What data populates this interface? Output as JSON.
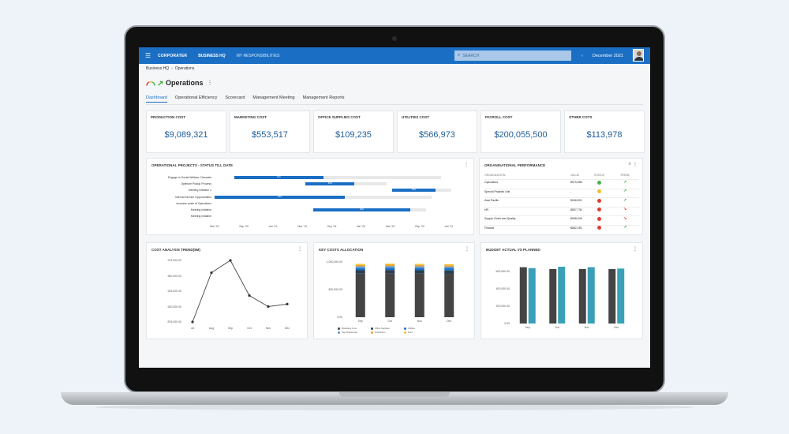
{
  "app": {
    "logo": "CORPORATER",
    "nav": [
      "BUSINESS HQ",
      "MY RESPONSIBILITIES"
    ],
    "search_placeholder": "SEARCH",
    "date": "December 2021",
    "prev": "‹",
    "next": "›"
  },
  "breadcrumb": [
    "Business HQ",
    "Operations"
  ],
  "page_title": "Operations",
  "tabs": [
    "Dashboard",
    "Operational Efficiency",
    "Scorecard",
    "Management Meeting",
    "Management Reports"
  ],
  "kpis": [
    {
      "label": "PRODUCTION COST",
      "value": "$9,089,321"
    },
    {
      "label": "MARKETING COST",
      "value": "$553,517"
    },
    {
      "label": "OFFICE SUPPLIES COST",
      "value": "$109,235"
    },
    {
      "label": "UTILITIES COST",
      "value": "$566,973"
    },
    {
      "label": "PAYROLL COST",
      "value": "$200,055,500"
    },
    {
      "label": "OTHER COTS",
      "value": "$113,978"
    }
  ],
  "gantt": {
    "title": "OPERATIONAL PROJECTS - STATUS TILL DATE",
    "axis_start": "2020-03",
    "axis_end": "2021-02",
    "ticks": [
      "Mar '20",
      "Sep '20",
      "Jan '19",
      "Mar '19",
      "Sep '19",
      "Jan '20",
      "Mar '20",
      "Sep '20",
      "Jan '21"
    ],
    "rows": [
      {
        "label": "Engage in Social Welfare Channels",
        "start": 0.08,
        "end": 0.92,
        "progress": 0.43,
        "pct": "71%"
      },
      {
        "label": "Optimize Pickup Process",
        "start": 0.37,
        "end": 0.7,
        "progress": 0.6,
        "pct": "61%"
      },
      {
        "label": "Meeting initiative 1",
        "start": 0.72,
        "end": 0.96,
        "progress": 0.74,
        "pct": "64%"
      },
      {
        "label": "Internal Service Opportunities",
        "start": 0.0,
        "end": 0.88,
        "progress": 0.6,
        "pct": "49%"
      },
      {
        "label": "Increase scale of Operations",
        "start": 0,
        "end": 0,
        "progress": 0,
        "pct": ""
      },
      {
        "label": "Meeting initiative",
        "start": 0.4,
        "end": 0.86,
        "progress": 0.86,
        "pct": "46%"
      },
      {
        "label": "Meeting initiative",
        "start": 0,
        "end": 0,
        "progress": 0,
        "pct": ""
      }
    ]
  },
  "org": {
    "title": "ORGANISATIONAL PERFORMANCE",
    "headers": [
      "ORGANIZATION",
      "VALUE",
      "STATUS",
      "TREND"
    ],
    "rows": [
      {
        "name": "Operations",
        "value": "$979,658",
        "status": "#4caf50",
        "trend": "up"
      },
      {
        "name": "Special Projects Unit",
        "value": "-",
        "status": "#f2c230",
        "trend": "up"
      },
      {
        "name": "Asia Pacific",
        "value": "$946,531",
        "status": "#e53935",
        "trend": "up"
      },
      {
        "name": "HR",
        "value": "$897,730",
        "status": "#e53935",
        "trend": "down"
      },
      {
        "name": "Supply Chain and Quality",
        "value": "$908,049",
        "status": "#e53935",
        "trend": "down"
      },
      {
        "name": "Finance",
        "value": "$882,253",
        "status": "#e53935",
        "trend": "up"
      }
    ]
  },
  "chart_data": [
    {
      "type": "line",
      "title": "COST ANALYSIS TREND($M)",
      "categories": [
        "Jul",
        "Aug",
        "Sep",
        "Oct",
        "Nov",
        "Dec"
      ],
      "values": [
        875000,
        955000,
        975000,
        918000,
        900000,
        904000
      ],
      "ylim": [
        875000,
        975000
      ],
      "yticks": [
        "975,000.00",
        "950,000.00",
        "925,000.00",
        "900,000.00",
        "875,000.00"
      ],
      "color": "#555555"
    },
    {
      "type": "bar",
      "stacked": true,
      "title": "KEY COSTS ALLOCATION",
      "categories": [
        "Sep",
        "Oct",
        "Nov",
        "Dec"
      ],
      "yticks": [
        "1,000,000.00",
        "500,000.00",
        "0.00"
      ],
      "ylim": [
        0,
        1000000
      ],
      "series": [
        {
          "name": "Marketing Cost",
          "color": "#444444",
          "values": [
            790000,
            795000,
            790000,
            785000
          ]
        },
        {
          "name": "Office Supplies",
          "color": "#2c3e50",
          "values": [
            60000,
            60000,
            60000,
            60000
          ]
        },
        {
          "name": "Utilities",
          "color": "#1a6fc4",
          "values": [
            40000,
            40000,
            40000,
            40000
          ]
        },
        {
          "name": "Payroll Expense",
          "color": "#5b9bd5",
          "values": [
            30000,
            30000,
            30000,
            30000
          ]
        },
        {
          "name": "Production",
          "color": "#f0a030",
          "values": [
            25000,
            25000,
            25000,
            25000
          ]
        },
        {
          "name": "Fuel",
          "color": "#f2c230",
          "values": [
            20000,
            20000,
            20000,
            20000
          ]
        }
      ]
    },
    {
      "type": "bar",
      "title": "BUDGET ACTUAL VS PLANNED",
      "categories": [
        "Sep",
        "Oct",
        "Nov",
        "Dec"
      ],
      "yticks": [
        "600,000.00",
        "400,000.00",
        "200,000.00",
        "0.00"
      ],
      "ylim": [
        0,
        660000
      ],
      "series": [
        {
          "name": "Actual",
          "color": "#444444",
          "values": [
            620000,
            600000,
            600000,
            600000
          ]
        },
        {
          "name": "Planned",
          "color": "#3aa0b8",
          "values": [
            610000,
            625000,
            620000,
            605000
          ]
        }
      ]
    }
  ]
}
